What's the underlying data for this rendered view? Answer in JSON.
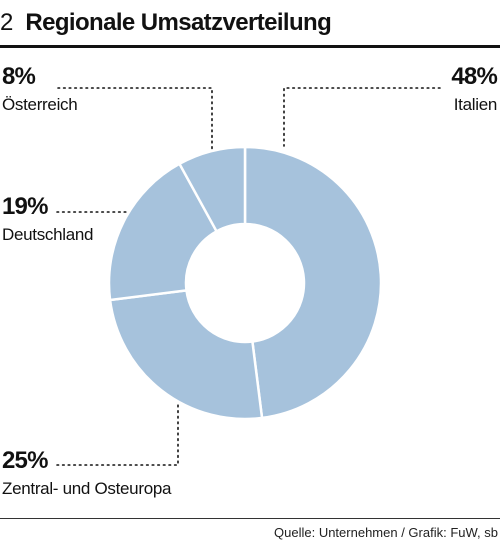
{
  "figure": {
    "number": "2",
    "title": "Regionale Umsatzverteilung",
    "source": "Quelle: Unternehmen / Grafik: FuW, sb"
  },
  "chart_data": {
    "type": "pie",
    "variant": "donut",
    "title": "Regionale Umsatzverteilung",
    "slice_color": "#a6c2dc",
    "separator_color": "#ffffff",
    "leader_color": "#111111",
    "categories": [
      "Italien",
      "Zentral- und Osteuropa",
      "Deutschland",
      "Österreich"
    ],
    "values": [
      48,
      25,
      19,
      8
    ],
    "value_labels": [
      "48%",
      "25%",
      "19%",
      "8%"
    ],
    "start": "top, clockwise"
  }
}
